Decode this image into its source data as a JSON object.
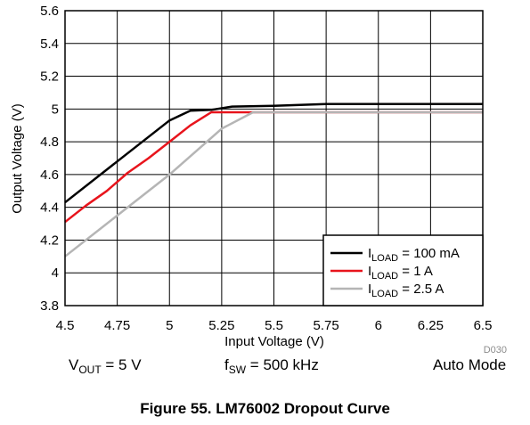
{
  "chart_data": {
    "type": "line",
    "title": "",
    "xlabel": "Input Voltage (V)",
    "ylabel": "Output Voltage (V)",
    "xlim": [
      4.5,
      6.5
    ],
    "ylim": [
      3.8,
      5.6
    ],
    "xticks": [
      4.5,
      4.75,
      5,
      5.25,
      5.5,
      5.75,
      6,
      6.25,
      6.5
    ],
    "xtick_labels": [
      "4.5",
      "4.75",
      "5",
      "5.25",
      "5.5",
      "5.75",
      "6",
      "6.25",
      "6.5"
    ],
    "yticks": [
      3.8,
      4,
      4.2,
      4.4,
      4.6,
      4.8,
      5,
      5.2,
      5.4,
      5.6
    ],
    "ytick_labels": [
      "3.8",
      "4",
      "4.2",
      "4.4",
      "4.6",
      "4.8",
      "5",
      "5.2",
      "5.4",
      "5.6"
    ],
    "grid": true,
    "legend_position": "bottom-right",
    "series": [
      {
        "name_main": "I",
        "name_sub": "LOAD",
        "name_rest": " = 100 mA",
        "color": "#000000",
        "x": [
          4.5,
          4.75,
          5,
          5.1,
          5.2,
          5.3,
          5.5,
          5.75,
          6,
          6.25,
          6.5
        ],
        "y": [
          4.43,
          4.68,
          4.93,
          4.99,
          4.995,
          5.015,
          5.02,
          5.03,
          5.03,
          5.03,
          5.03
        ]
      },
      {
        "name_main": "I",
        "name_sub": "LOAD",
        "name_rest": " = 1 A",
        "color": "#e8141c",
        "x": [
          4.5,
          4.6,
          4.7,
          4.8,
          4.9,
          5,
          5.1,
          5.2,
          5.25,
          5.5,
          6,
          6.5
        ],
        "y": [
          4.31,
          4.41,
          4.5,
          4.61,
          4.7,
          4.8,
          4.9,
          4.98,
          4.98,
          4.98,
          4.98,
          4.98
        ]
      },
      {
        "name_main": "I",
        "name_sub": "LOAD",
        "name_rest": " = 2.5 A",
        "color": "#b5b5b5",
        "x": [
          4.5,
          4.75,
          5,
          5.25,
          5.4,
          5.5,
          6,
          6.5
        ],
        "y": [
          4.1,
          4.35,
          4.6,
          4.88,
          4.98,
          4.98,
          4.98,
          4.98
        ]
      }
    ],
    "watermark": "D030"
  },
  "conditions": {
    "vout": {
      "main": "V",
      "sub": "OUT",
      "rest": " = 5 V"
    },
    "fsw": {
      "main": "f",
      "sub": "SW",
      "rest": " = 500 kHz"
    },
    "mode": "Auto Mode"
  },
  "caption": "Figure 55. LM76002 Dropout Curve"
}
